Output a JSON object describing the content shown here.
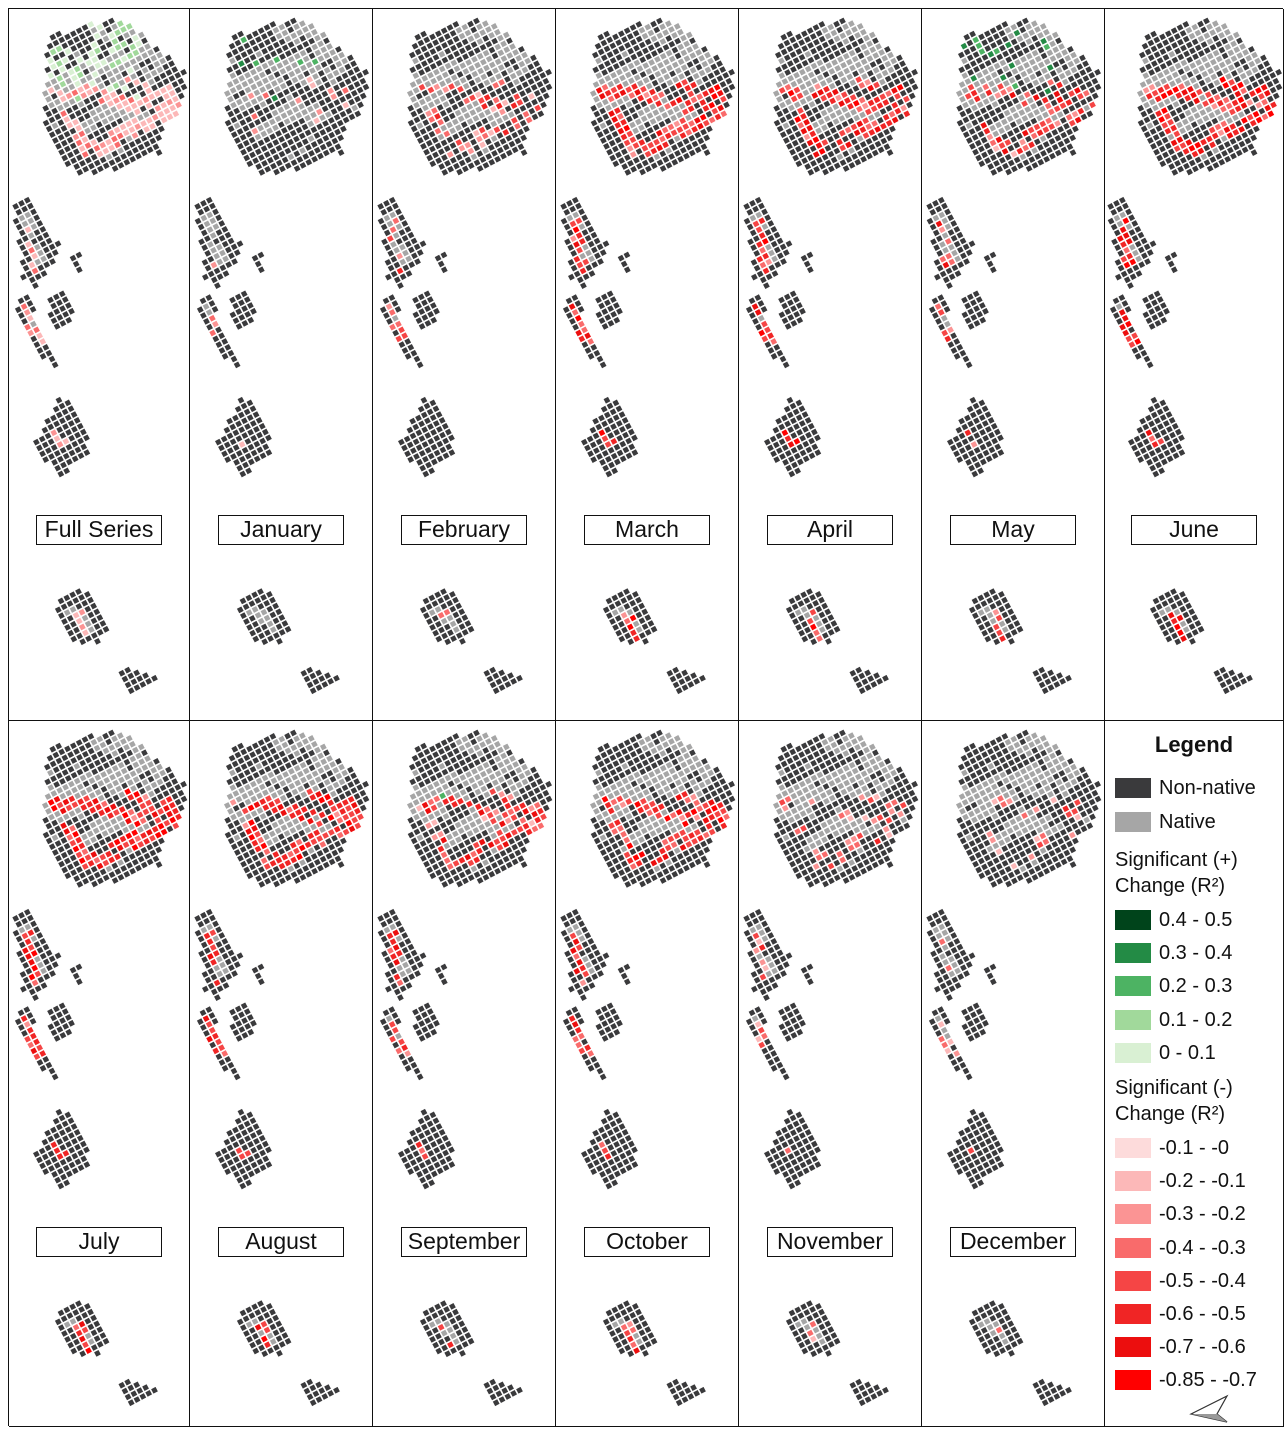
{
  "panels": [
    {
      "label": "Full Series",
      "mode": "full"
    },
    {
      "label": "January",
      "mode": "jan"
    },
    {
      "label": "February",
      "mode": "feb"
    },
    {
      "label": "March",
      "mode": "mar"
    },
    {
      "label": "April",
      "mode": "apr"
    },
    {
      "label": "May",
      "mode": "may"
    },
    {
      "label": "June",
      "mode": "jun"
    },
    {
      "label": "July",
      "mode": "jul"
    },
    {
      "label": "August",
      "mode": "aug"
    },
    {
      "label": "September",
      "mode": "sep"
    },
    {
      "label": "October",
      "mode": "oct"
    },
    {
      "label": "November",
      "mode": "nov"
    },
    {
      "label": "December",
      "mode": "dec"
    }
  ],
  "legend": {
    "title": "Legend",
    "base": [
      {
        "label": "Non-native",
        "color": "#3a3a3c"
      },
      {
        "label": "Native",
        "color": "#a6a6a6"
      }
    ],
    "positive_heading_1": "Significant (+)",
    "positive_heading_2": "Change (R²)",
    "positive": [
      {
        "label": "0.4 - 0.5",
        "color": "#00441b"
      },
      {
        "label": "0.3 - 0.4",
        "color": "#238b45"
      },
      {
        "label": "0.2 - 0.3",
        "color": "#4db363"
      },
      {
        "label": "0.1 - 0.2",
        "color": "#a1d99b"
      },
      {
        "label": "0 - 0.1",
        "color": "#d9f0d3"
      }
    ],
    "negative_heading_1": "Significant (-)",
    "negative_heading_2": "Change (R²)",
    "negative": [
      {
        "label": "-0.1 - -0",
        "color": "#fddbdb"
      },
      {
        "label": "-0.2 - -0.1",
        "color": "#fcb8b8"
      },
      {
        "label": "-0.3 - -0.2",
        "color": "#fb9494"
      },
      {
        "label": "-0.4 - -0.3",
        "color": "#f96b6b"
      },
      {
        "label": "-0.5 - -0.4",
        "color": "#f54545"
      },
      {
        "label": "-0.6 - -0.5",
        "color": "#f02525"
      },
      {
        "label": "-0.7 - -0.6",
        "color": "#ec0e0e"
      },
      {
        "label": "-0.85 - -0.7",
        "color": "#ff0000"
      }
    ]
  }
}
